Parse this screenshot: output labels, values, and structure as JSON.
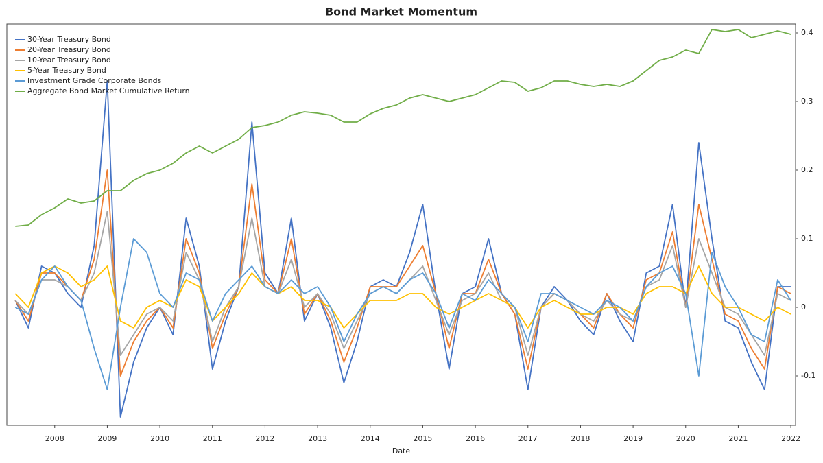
{
  "chart_data": {
    "type": "line",
    "title": "Bond Market Momentum",
    "x_label": "Date",
    "x": [
      2007.25,
      2007.5,
      2007.75,
      2008.0,
      2008.25,
      2008.5,
      2008.75,
      2009.0,
      2009.25,
      2009.5,
      2009.75,
      2010.0,
      2010.25,
      2010.5,
      2010.75,
      2011.0,
      2011.25,
      2011.5,
      2011.75,
      2012.0,
      2012.25,
      2012.5,
      2012.75,
      2013.0,
      2013.25,
      2013.5,
      2013.75,
      2014.0,
      2014.25,
      2014.5,
      2014.75,
      2015.0,
      2015.25,
      2015.5,
      2015.75,
      2016.0,
      2016.25,
      2016.5,
      2016.75,
      2017.0,
      2017.25,
      2017.5,
      2017.75,
      2018.0,
      2018.25,
      2018.5,
      2018.75,
      2019.0,
      2019.25,
      2019.5,
      2019.75,
      2020.0,
      2020.25,
      2020.5,
      2020.75,
      2021.0,
      2021.25,
      2021.5,
      2021.75,
      2022.0
    ],
    "series": [
      {
        "name": "30-Year Treasury Bond",
        "color": "#4472c4",
        "values": [
          0.01,
          -0.03,
          0.06,
          0.05,
          0.02,
          0.0,
          0.09,
          0.33,
          -0.16,
          -0.08,
          -0.03,
          0.0,
          -0.04,
          0.13,
          0.06,
          -0.09,
          -0.02,
          0.03,
          0.27,
          0.05,
          0.02,
          0.13,
          -0.02,
          0.02,
          -0.03,
          -0.11,
          -0.05,
          0.03,
          0.04,
          0.03,
          0.08,
          0.15,
          0.02,
          -0.09,
          0.02,
          0.03,
          0.1,
          0.02,
          -0.01,
          -0.12,
          0.0,
          0.03,
          0.01,
          -0.02,
          -0.04,
          0.02,
          -0.02,
          -0.05,
          0.05,
          0.06,
          0.15,
          0.0,
          0.24,
          0.1,
          -0.02,
          -0.03,
          -0.08,
          -0.12,
          0.03,
          0.03
        ]
      },
      {
        "name": "20-Year Treasury Bond",
        "color": "#ed7d31",
        "values": [
          0.01,
          -0.02,
          0.05,
          0.05,
          0.03,
          0.01,
          0.07,
          0.2,
          -0.1,
          -0.05,
          -0.02,
          0.0,
          -0.03,
          0.1,
          0.05,
          -0.06,
          -0.01,
          0.03,
          0.18,
          0.04,
          0.02,
          0.1,
          -0.01,
          0.02,
          -0.02,
          -0.08,
          -0.03,
          0.03,
          0.03,
          0.03,
          0.06,
          0.09,
          0.02,
          -0.06,
          0.02,
          0.02,
          0.07,
          0.02,
          -0.01,
          -0.09,
          0.0,
          0.02,
          0.01,
          -0.01,
          -0.03,
          0.02,
          -0.01,
          -0.03,
          0.04,
          0.05,
          0.11,
          0.0,
          0.15,
          0.07,
          -0.01,
          -0.02,
          -0.06,
          -0.09,
          0.03,
          0.02
        ]
      },
      {
        "name": "10-Year Treasury Bond",
        "color": "#a5a5a5",
        "values": [
          0.01,
          -0.01,
          0.04,
          0.04,
          0.03,
          0.01,
          0.05,
          0.14,
          -0.07,
          -0.04,
          -0.01,
          0.0,
          -0.02,
          0.08,
          0.04,
          -0.05,
          0.0,
          0.03,
          0.13,
          0.03,
          0.02,
          0.07,
          0.0,
          0.02,
          -0.01,
          -0.06,
          -0.02,
          0.02,
          0.03,
          0.02,
          0.04,
          0.06,
          0.01,
          -0.04,
          0.01,
          0.02,
          0.05,
          0.01,
          0.0,
          -0.07,
          0.0,
          0.02,
          0.01,
          -0.01,
          -0.02,
          0.01,
          -0.01,
          -0.02,
          0.03,
          0.04,
          0.09,
          0.0,
          0.1,
          0.05,
          0.0,
          -0.01,
          -0.04,
          -0.07,
          0.02,
          0.01
        ]
      },
      {
        "name": "5-Year Treasury Bond",
        "color": "#ffc000",
        "values": [
          0.02,
          0.0,
          0.05,
          0.06,
          0.05,
          0.03,
          0.04,
          0.06,
          -0.02,
          -0.03,
          0.0,
          0.01,
          0.0,
          0.04,
          0.03,
          -0.02,
          0.0,
          0.02,
          0.05,
          0.03,
          0.02,
          0.03,
          0.01,
          0.01,
          0.0,
          -0.03,
          -0.01,
          0.01,
          0.01,
          0.01,
          0.02,
          0.02,
          0.0,
          -0.01,
          0.0,
          0.01,
          0.02,
          0.01,
          0.0,
          -0.03,
          0.0,
          0.01,
          0.0,
          -0.01,
          -0.01,
          0.0,
          0.0,
          -0.01,
          0.02,
          0.03,
          0.03,
          0.02,
          0.06,
          0.02,
          0.0,
          0.0,
          -0.01,
          -0.02,
          0.0,
          -0.01
        ]
      },
      {
        "name": "Investment Grade Corporate Bonds",
        "color": "#5b9bd5",
        "values": [
          0.0,
          -0.01,
          0.04,
          0.06,
          0.03,
          0.01,
          -0.06,
          -0.12,
          0.0,
          0.1,
          0.08,
          0.02,
          0.0,
          0.05,
          0.04,
          -0.02,
          0.02,
          0.04,
          0.06,
          0.03,
          0.02,
          0.04,
          0.02,
          0.03,
          0.0,
          -0.05,
          -0.01,
          0.02,
          0.03,
          0.02,
          0.04,
          0.05,
          0.02,
          -0.03,
          0.02,
          0.01,
          0.04,
          0.02,
          0.0,
          -0.05,
          0.02,
          0.02,
          0.01,
          0.0,
          -0.01,
          0.01,
          0.0,
          -0.02,
          0.03,
          0.05,
          0.06,
          0.02,
          -0.1,
          0.08,
          0.03,
          0.0,
          -0.04,
          -0.05,
          0.04,
          0.01
        ]
      },
      {
        "name": "Aggregate Bond Market Cumulative Return",
        "color": "#70ad47",
        "values": [
          0.118,
          0.12,
          0.135,
          0.145,
          0.158,
          0.152,
          0.155,
          0.17,
          0.17,
          0.185,
          0.195,
          0.2,
          0.21,
          0.225,
          0.235,
          0.225,
          0.235,
          0.245,
          0.262,
          0.265,
          0.27,
          0.28,
          0.285,
          0.283,
          0.28,
          0.27,
          0.27,
          0.282,
          0.29,
          0.295,
          0.305,
          0.31,
          0.305,
          0.3,
          0.305,
          0.31,
          0.32,
          0.33,
          0.328,
          0.315,
          0.32,
          0.33,
          0.33,
          0.325,
          0.322,
          0.325,
          0.322,
          0.33,
          0.345,
          0.36,
          0.365,
          0.375,
          0.37,
          0.405,
          0.402,
          0.405,
          0.393,
          0.398,
          0.403,
          0.398
        ]
      }
    ],
    "xlim": [
      2007.09,
      2022.09
    ],
    "xticks": [
      2008,
      2009,
      2010,
      2011,
      2012,
      2013,
      2014,
      2015,
      2016,
      2017,
      2018,
      2019,
      2020,
      2021,
      2022
    ],
    "ylim": [
      -0.172,
      0.413
    ],
    "yticks": [
      -0.1,
      0,
      0.1,
      0.2,
      0.3,
      0.4
    ],
    "legend": "upper-left"
  }
}
